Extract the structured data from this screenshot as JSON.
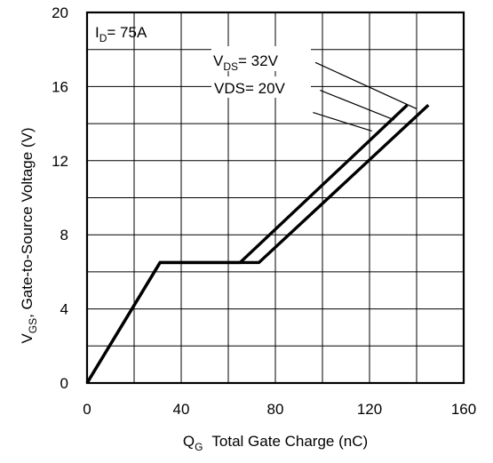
{
  "chart_data": {
    "type": "line",
    "title": "",
    "xlabel": {
      "main": "Q",
      "sub": "G",
      "rest": "Total Gate Charge (nC)"
    },
    "ylabel": {
      "main": "V",
      "sub": "GS",
      "rest": ", Gate-to-Source Voltage (V)"
    },
    "xlim": [
      0,
      160
    ],
    "ylim": [
      0,
      20
    ],
    "xticks": [
      0,
      40,
      80,
      120,
      160
    ],
    "yticks": [
      0,
      4,
      8,
      12,
      16,
      20
    ],
    "xtick_labels": [
      "0",
      "40",
      "80",
      "120",
      "160"
    ],
    "ytick_labels": [
      "0",
      "4",
      "8",
      "12",
      "16",
      "20"
    ],
    "grid": true,
    "condition_label": {
      "main": "I",
      "sub": "D",
      "rest": "= 75A"
    },
    "series": [
      {
        "label_main": "V",
        "label_sub": "DS",
        "label_rest": "= 32V",
        "points": [
          [
            0,
            0
          ],
          [
            31,
            6.5
          ],
          [
            73,
            6.5
          ],
          [
            145,
            15
          ]
        ]
      },
      {
        "label_main": "VDS",
        "label_sub": "",
        "label_rest": "= 20V",
        "points": [
          [
            0,
            0
          ],
          [
            31,
            6.5
          ],
          [
            65,
            6.5
          ],
          [
            136,
            15
          ]
        ]
      }
    ],
    "leader_lines": [
      {
        "from": [
          97,
          17.3
        ],
        "to": [
          140,
          14.8
        ]
      },
      {
        "from": [
          99,
          15.8
        ],
        "to": [
          130.5,
          14.2
        ]
      },
      {
        "from": [
          96,
          14.6
        ],
        "to": [
          121,
          13.6
        ]
      }
    ]
  }
}
